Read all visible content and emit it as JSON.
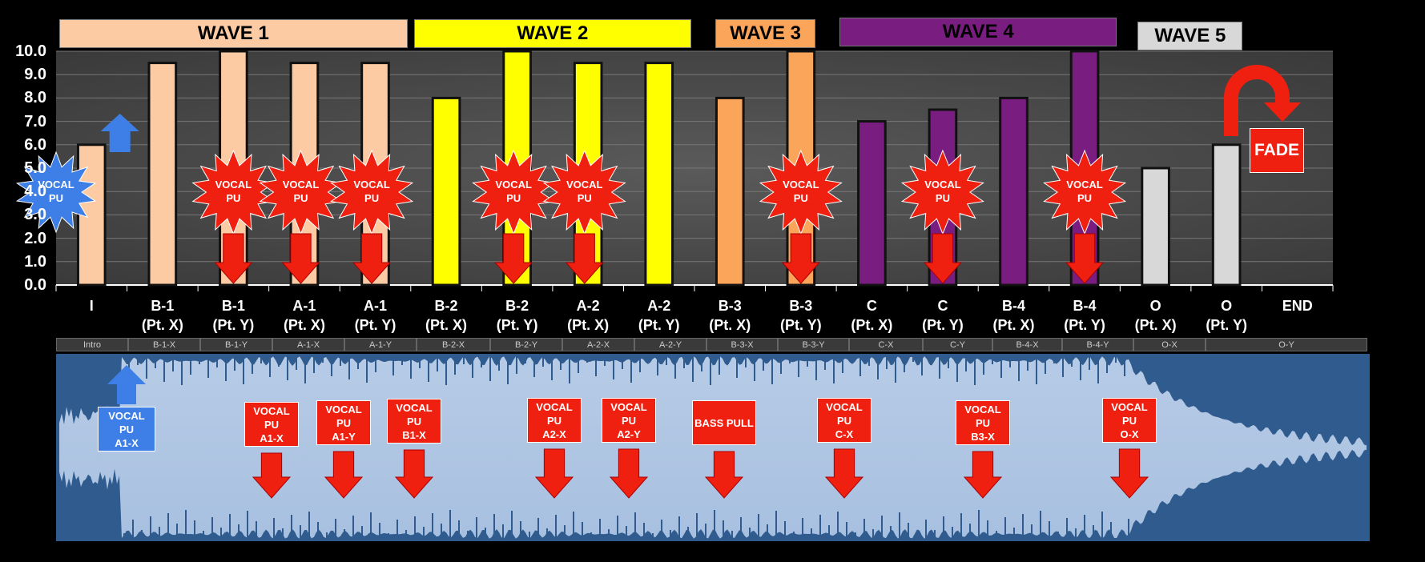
{
  "chart_data": {
    "type": "bar",
    "waves": [
      {
        "label": "WAVE 1",
        "color": "#FCCBA4"
      },
      {
        "label": "WAVE 2",
        "color": "#FFFF00"
      },
      {
        "label": "WAVE 3",
        "color": "#FBA55A"
      },
      {
        "label": "WAVE 4",
        "color": "#7A1D80"
      },
      {
        "label": "WAVE 5",
        "color": "#D8D8D8"
      }
    ],
    "categories": [
      "I",
      "B-1\n(Pt. X)",
      "B-1\n(Pt. Y)",
      "A-1\n(Pt. X)",
      "A-1\n(Pt. Y)",
      "B-2\n(Pt. X)",
      "B-2\n(Pt. Y)",
      "A-2\n(Pt. X)",
      "A-2\n(Pt. Y)",
      "B-3\n(Pt. X)",
      "B-3\n(Pt. Y)",
      "C\n(Pt. X)",
      "C\n(Pt. Y)",
      "B-4\n(Pt. X)",
      "B-4\n(Pt. Y)",
      "O\n(Pt. X)",
      "O\n(Pt. Y)",
      "END"
    ],
    "values": [
      6.0,
      9.5,
      10.0,
      9.5,
      9.5,
      8.0,
      10.0,
      9.5,
      9.5,
      8.0,
      10.0,
      7.0,
      7.5,
      8.0,
      10.0,
      5.0,
      6.0,
      null
    ],
    "bar_colors": [
      "#FCCBA4",
      "#FCCBA4",
      "#FCCBA4",
      "#FCCBA4",
      "#FCCBA4",
      "#FFFF00",
      "#FFFF00",
      "#FFFF00",
      "#FFFF00",
      "#FBA55A",
      "#FBA55A",
      "#7A1D80",
      "#7A1D80",
      "#7A1D80",
      "#7A1D80",
      "#D8D8D8",
      "#D8D8D8",
      null
    ],
    "ylim": [
      0,
      10
    ],
    "yticks": [
      "0.0",
      "1.0",
      "2.0",
      "3.0",
      "4.0",
      "5.0",
      "6.0",
      "7.0",
      "8.0",
      "9.0",
      "10.0"
    ],
    "grid": true,
    "burst_label_line1": "VOCAL",
    "burst_label_line2": "PU",
    "fade_label": "FADE"
  },
  "timeline": {
    "segments": [
      "Intro",
      "B-1-X",
      "B-1-Y",
      "A-1-X",
      "A-1-Y",
      "B-2-X",
      "B-2-Y",
      "A-2-X",
      "A-2-Y",
      "B-3-X",
      "B-3-Y",
      "C-X",
      "C-Y",
      "B-4-X",
      "B-4-Y",
      "O-X",
      "O-Y"
    ],
    "notes": [
      {
        "lines": [
          "VOCAL",
          "PU",
          "A1-X"
        ],
        "color": "#3D7FE6"
      },
      {
        "lines": [
          "VOCAL",
          "PU",
          "A1-X"
        ],
        "color": "#F02010"
      },
      {
        "lines": [
          "VOCAL",
          "PU",
          "A1-Y"
        ],
        "color": "#F02010"
      },
      {
        "lines": [
          "VOCAL",
          "PU",
          "B1-X"
        ],
        "color": "#F02010"
      },
      {
        "lines": [
          "VOCAL",
          "PU",
          "A2-X"
        ],
        "color": "#F02010"
      },
      {
        "lines": [
          "VOCAL",
          "PU",
          "A2-Y"
        ],
        "color": "#F02010"
      },
      {
        "lines": [
          "BASS PULL"
        ],
        "color": "#F02010"
      },
      {
        "lines": [
          "VOCAL",
          "PU",
          "C-X"
        ],
        "color": "#F02010"
      },
      {
        "lines": [
          "VOCAL",
          "PU",
          "B3-X"
        ],
        "color": "#F02010"
      },
      {
        "lines": [
          "VOCAL",
          "PU",
          "O-X"
        ],
        "color": "#F02010"
      }
    ]
  }
}
